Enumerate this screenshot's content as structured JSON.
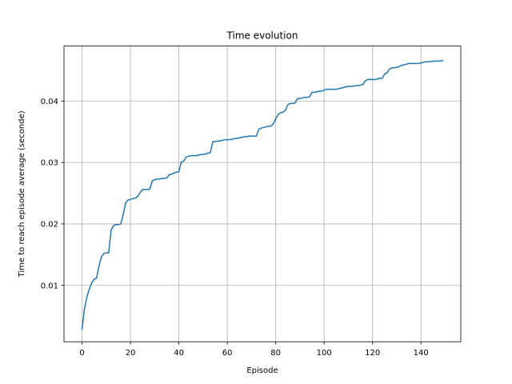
{
  "chart_data": {
    "type": "line",
    "title": "Time evolution",
    "xlabel": "Episode",
    "ylabel": "Time to reach episode average (seconde)",
    "xlim": [
      -7.45,
      156.45
    ],
    "ylim": [
      0.00083,
      0.04894
    ],
    "xticks": [
      0,
      20,
      40,
      60,
      80,
      100,
      120,
      140
    ],
    "yticks": [
      0.01,
      0.02,
      0.03,
      0.04
    ],
    "xtick_labels": [
      "0",
      "20",
      "40",
      "60",
      "80",
      "100",
      "120",
      "140"
    ],
    "ytick_labels": [
      "0.01",
      "0.02",
      "0.03",
      "0.04"
    ],
    "grid": true,
    "series": [
      {
        "color": "#1f77b4",
        "x": [
          0,
          1,
          2,
          3,
          4,
          5,
          6,
          7,
          8,
          9,
          10,
          11,
          12,
          13,
          14,
          15,
          16,
          17,
          18,
          19,
          20,
          21,
          22,
          23,
          24,
          25,
          26,
          27,
          28,
          29,
          30,
          31,
          32,
          33,
          34,
          35,
          36,
          37,
          38,
          39,
          40,
          41,
          42,
          43,
          44,
          45,
          46,
          47,
          48,
          49,
          50,
          51,
          52,
          53,
          54,
          55,
          56,
          57,
          58,
          59,
          60,
          61,
          62,
          63,
          64,
          65,
          66,
          67,
          68,
          69,
          70,
          71,
          72,
          73,
          74,
          75,
          76,
          77,
          78,
          79,
          80,
          81,
          82,
          83,
          84,
          85,
          86,
          87,
          88,
          89,
          90,
          91,
          92,
          93,
          94,
          95,
          96,
          97,
          98,
          99,
          100,
          101,
          102,
          103,
          104,
          105,
          106,
          107,
          108,
          109,
          110,
          111,
          112,
          113,
          114,
          115,
          116,
          117,
          118,
          119,
          120,
          121,
          122,
          123,
          124,
          125,
          126,
          127,
          128,
          129,
          130,
          131,
          132,
          133,
          134,
          135,
          136,
          137,
          138,
          139,
          140,
          141,
          142,
          143,
          144,
          145,
          146,
          147,
          148,
          149
        ],
        "y": [
          0.0029,
          0.0062,
          0.0081,
          0.0094,
          0.0104,
          0.011,
          0.0112,
          0.0132,
          0.0146,
          0.0152,
          0.0153,
          0.0153,
          0.019,
          0.0197,
          0.0199,
          0.0199,
          0.02,
          0.0215,
          0.0234,
          0.0239,
          0.024,
          0.0241,
          0.0242,
          0.0245,
          0.0251,
          0.0256,
          0.0256,
          0.0256,
          0.0257,
          0.027,
          0.0272,
          0.0273,
          0.0273,
          0.0274,
          0.0274,
          0.0275,
          0.028,
          0.0281,
          0.0283,
          0.0284,
          0.0285,
          0.0301,
          0.0302,
          0.0309,
          0.031,
          0.0311,
          0.0311,
          0.0311,
          0.0312,
          0.0313,
          0.0313,
          0.0314,
          0.0315,
          0.0316,
          0.0334,
          0.0334,
          0.0335,
          0.0335,
          0.0336,
          0.0337,
          0.0337,
          0.0337,
          0.0338,
          0.0339,
          0.0339,
          0.034,
          0.0341,
          0.0342,
          0.0342,
          0.0343,
          0.0343,
          0.0343,
          0.0343,
          0.0354,
          0.0356,
          0.0357,
          0.0358,
          0.0359,
          0.0359,
          0.0363,
          0.0371,
          0.0378,
          0.0381,
          0.0382,
          0.0385,
          0.0394,
          0.0396,
          0.0396,
          0.0397,
          0.0404,
          0.0404,
          0.0405,
          0.0406,
          0.0406,
          0.0407,
          0.0414,
          0.0414,
          0.0415,
          0.0416,
          0.0416,
          0.0418,
          0.0419,
          0.0419,
          0.0419,
          0.0419,
          0.0419,
          0.042,
          0.0421,
          0.0422,
          0.0423,
          0.0424,
          0.0424,
          0.0424,
          0.0425,
          0.0425,
          0.0426,
          0.0427,
          0.0433,
          0.0435,
          0.0435,
          0.0435,
          0.0435,
          0.0436,
          0.0437,
          0.0437,
          0.0444,
          0.0446,
          0.0452,
          0.0454,
          0.0454,
          0.0455,
          0.0456,
          0.0458,
          0.0459,
          0.046,
          0.0461,
          0.0461,
          0.0461,
          0.0461,
          0.0461,
          0.0462,
          0.0463,
          0.0464,
          0.0464,
          0.0464,
          0.0465,
          0.0465,
          0.0465,
          0.0465,
          0.0466
        ]
      }
    ]
  }
}
